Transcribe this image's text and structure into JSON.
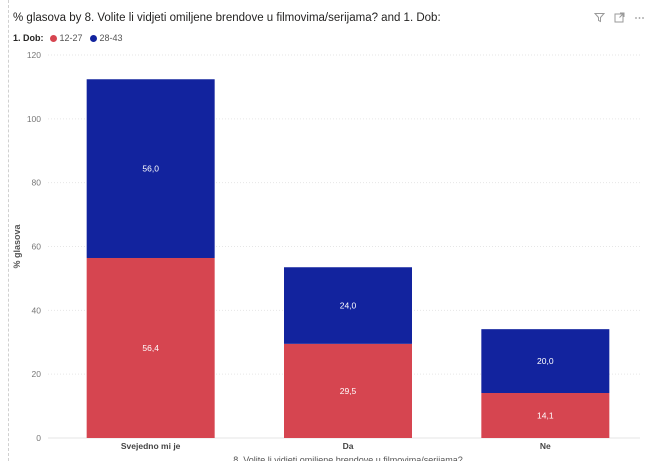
{
  "visual": {
    "title": "% glasova by 8. Volite li vidjeti omiljene brendove u filmovima/serijama? and 1. Dob:",
    "toolbar": [
      {
        "icon": "filter-icon",
        "glyph": "⊽"
      },
      {
        "icon": "focus-mode-icon",
        "glyph": "⤢"
      },
      {
        "icon": "more-options-icon",
        "glyph": "···"
      }
    ]
  },
  "legend": {
    "title": "1. Dob:",
    "entries": [
      {
        "label": "12-27",
        "color": "#D64550"
      },
      {
        "label": "28-43",
        "color": "#12239E"
      }
    ]
  },
  "chart_data": {
    "type": "bar",
    "stacked": true,
    "title": "% glasova by 8. Volite li vidjeti omiljene brendove u filmovima/serijama? and 1. Dob:",
    "xlabel": "8. Volite li vidjeti omiljene brendove u filmovima/serijama?",
    "ylabel": "% glasova",
    "categories": [
      "Svejedno mi je",
      "Da",
      "Ne"
    ],
    "series": [
      {
        "name": "12-27",
        "color": "#D64550",
        "values": [
          56.4,
          29.5,
          14.1
        ],
        "labels": [
          "56,4",
          "29,5",
          "14,1"
        ]
      },
      {
        "name": "28-43",
        "color": "#12239E",
        "values": [
          56.0,
          24.0,
          20.0
        ],
        "labels": [
          "56,0",
          "24,0",
          "20,0"
        ]
      }
    ],
    "ylim": [
      0,
      120
    ],
    "yticks": [
      0,
      20,
      40,
      60,
      80,
      100,
      120
    ],
    "grid": true,
    "legend_position": "top-left"
  }
}
